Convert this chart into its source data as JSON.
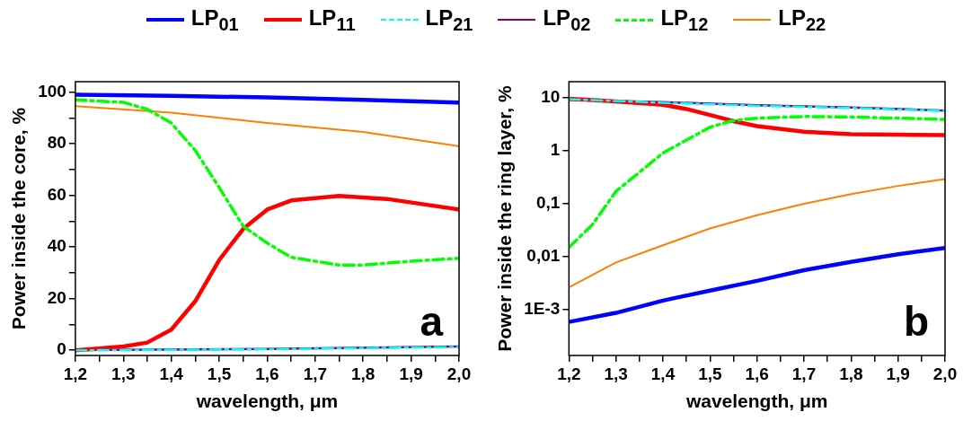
{
  "chart_data": [
    {
      "type": "line",
      "xlabel": "wavelength, μm",
      "ylabel": "Power inside the core, %",
      "annotations": [
        "a"
      ],
      "legend": "top",
      "xlim": [
        1.2,
        2.0
      ],
      "ylim": [
        -2,
        104
      ],
      "xticks": [
        {
          "value": 1.2,
          "label": "1,2"
        },
        {
          "value": 1.25,
          "label": null
        },
        {
          "value": 1.3,
          "label": "1,3"
        },
        {
          "value": 1.35,
          "label": null
        },
        {
          "value": 1.4,
          "label": "1,4"
        },
        {
          "value": 1.45,
          "label": null
        },
        {
          "value": 1.5,
          "label": "1,5"
        },
        {
          "value": 1.55,
          "label": null
        },
        {
          "value": 1.6,
          "label": "1,6"
        },
        {
          "value": 1.65,
          "label": null
        },
        {
          "value": 1.7,
          "label": "1,7"
        },
        {
          "value": 1.75,
          "label": null
        },
        {
          "value": 1.8,
          "label": "1,8"
        },
        {
          "value": 1.85,
          "label": null
        },
        {
          "value": 1.9,
          "label": "1,9"
        },
        {
          "value": 1.95,
          "label": null
        },
        {
          "value": 2.0,
          "label": "2,0"
        }
      ],
      "yticks": [
        0,
        {
          "value": 10,
          "label": null
        },
        20,
        {
          "value": 30,
          "label": null
        },
        40,
        {
          "value": 50,
          "label": null
        },
        60,
        {
          "value": 70,
          "label": null
        },
        80,
        {
          "value": 90,
          "label": null
        },
        100
      ],
      "series": [
        {
          "name": "LP$_{01}$",
          "color": "#0000ff",
          "line_style": "solid",
          "x": [
            1.2,
            1.4,
            1.6,
            1.8,
            2.0
          ],
          "values": [
            99,
            98.5,
            97.9,
            97,
            95.9
          ]
        },
        {
          "name": "LP$_{11}$",
          "color": "#ff0000",
          "line_style": "solid",
          "x": [
            1.2,
            1.3,
            1.35,
            1.4,
            1.45,
            1.5,
            1.55,
            1.6,
            1.65,
            1.75,
            1.85,
            2.0
          ],
          "values": [
            0,
            1.5,
            3,
            8,
            19,
            35,
            47,
            54.5,
            58,
            59.8,
            58.6,
            54.5
          ]
        },
        {
          "name": "LP$_{21}$",
          "color": "#00ffff",
          "line_style": "dashed",
          "x": [
            1.2,
            1.6,
            2.0
          ],
          "values": [
            0,
            0.4,
            1.3
          ]
        },
        {
          "name": "LP$_{02}$",
          "color": "#800080",
          "line_style": "solid",
          "x": [
            1.2,
            1.6,
            2.0
          ],
          "values": [
            0.1,
            0.5,
            1.5
          ]
        },
        {
          "name": "LP$_{12}$",
          "color": "#00ff00",
          "line_style": "dashed",
          "x": [
            1.2,
            1.3,
            1.35,
            1.4,
            1.45,
            1.5,
            1.55,
            1.6,
            1.65,
            1.7,
            1.75,
            1.8,
            1.9,
            2.0
          ],
          "values": [
            97,
            96,
            93.3,
            88,
            77.4,
            63,
            48,
            41.5,
            36,
            34.5,
            33,
            33,
            34.5,
            35.6
          ]
        },
        {
          "name": "LP$_{22}$",
          "color": "#ff8000",
          "line_style": "solid",
          "x": [
            1.2,
            1.4,
            1.6,
            1.8,
            2.0
          ],
          "values": [
            94.5,
            92,
            88,
            84.5,
            79
          ]
        }
      ]
    },
    {
      "type": "line",
      "xlabel": "wavelength, μm",
      "ylabel": "Power inside the ring layer, %",
      "annotations": [
        "b"
      ],
      "log": "y",
      "xlim": [
        1.2,
        2.0
      ],
      "ylim": [
        0.000135,
        20
      ],
      "xticks": [
        {
          "value": 1.2,
          "label": "1,2"
        },
        {
          "value": 1.25,
          "label": null
        },
        {
          "value": 1.3,
          "label": "1,3"
        },
        {
          "value": 1.35,
          "label": null
        },
        {
          "value": 1.4,
          "label": "1,4"
        },
        {
          "value": 1.45,
          "label": null
        },
        {
          "value": 1.5,
          "label": "1,5"
        },
        {
          "value": 1.55,
          "label": null
        },
        {
          "value": 1.6,
          "label": "1,6"
        },
        {
          "value": 1.65,
          "label": null
        },
        {
          "value": 1.7,
          "label": "1,7"
        },
        {
          "value": 1.75,
          "label": null
        },
        {
          "value": 1.8,
          "label": "1,8"
        },
        {
          "value": 1.85,
          "label": null
        },
        {
          "value": 1.9,
          "label": "1,9"
        },
        {
          "value": 1.95,
          "label": null
        },
        {
          "value": 2.0,
          "label": "2,0"
        }
      ],
      "yticks": [
        {
          "value": 0.001,
          "label": "1E-3"
        },
        {
          "value": 0.01,
          "label": "0,01"
        },
        {
          "value": 0.1,
          "label": "0,1"
        },
        1,
        10
      ],
      "series": [
        {
          "color": "#0000ff",
          "line_style": "solid",
          "x": [
            1.2,
            1.3,
            1.4,
            1.5,
            1.6,
            1.7,
            1.8,
            1.9,
            2.0
          ],
          "values": [
            0.00058,
            0.00086,
            0.00147,
            0.00227,
            0.00347,
            0.0055,
            0.0079,
            0.011,
            0.0145
          ]
        },
        {
          "color": "#ff0000",
          "line_style": "solid",
          "x": [
            1.2,
            1.3,
            1.4,
            1.45,
            1.5,
            1.55,
            1.6,
            1.7,
            1.8,
            1.9,
            2.0
          ],
          "values": [
            9.5,
            8.5,
            7.3,
            6.1,
            4.7,
            3.6,
            2.9,
            2.27,
            2.04,
            2.0,
            1.96
          ]
        },
        {
          "color": "#00ffff",
          "line_style": "dashed",
          "x": [
            1.2,
            1.4,
            1.6,
            1.8,
            2.0
          ],
          "values": [
            9.35,
            8.0,
            7.0,
            6.4,
            5.6
          ]
        },
        {
          "color": "#800080",
          "line_style": "solid",
          "x": [
            1.2,
            1.4,
            1.6,
            1.8,
            2.0
          ],
          "values": [
            9.1,
            8.2,
            7.2,
            6.5,
            5.7
          ]
        },
        {
          "color": "#00ff00",
          "line_style": "dashed",
          "x": [
            1.2,
            1.25,
            1.3,
            1.4,
            1.5,
            1.55,
            1.6,
            1.7,
            1.8,
            1.9,
            2.0
          ],
          "values": [
            0.0149,
            0.04,
            0.17,
            0.9,
            2.77,
            3.7,
            4.1,
            4.4,
            4.3,
            4.1,
            3.86
          ]
        },
        {
          "color": "#ff8000",
          "line_style": "solid",
          "x": [
            1.2,
            1.3,
            1.4,
            1.5,
            1.6,
            1.7,
            1.8,
            1.9,
            2.0
          ],
          "values": [
            0.0026,
            0.0077,
            0.0163,
            0.0338,
            0.06,
            0.099,
            0.15,
            0.215,
            0.29
          ]
        }
      ]
    }
  ]
}
